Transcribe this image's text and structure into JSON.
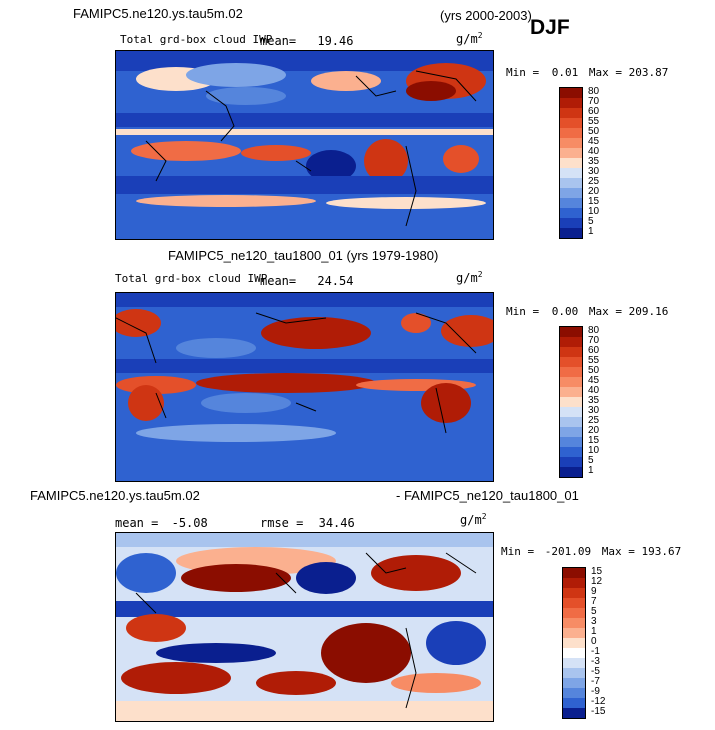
{
  "season": "DJF",
  "units_base": "g/m",
  "units_exp": "2",
  "panels": [
    {
      "title_left": "FAMIPC5.ne120.ys.tau5m.02",
      "title_right": "(yrs 2000-2003)",
      "variable": "Total grd-box cloud IWP",
      "mean_label": "mean=",
      "mean_value": "19.46",
      "min_label": "Min =",
      "min_value": "0.01",
      "max_label": "Max =",
      "max_value": "203.87",
      "colorbar_levels": [
        "80",
        "70",
        "60",
        "55",
        "50",
        "45",
        "40",
        "35",
        "30",
        "25",
        "20",
        "15",
        "10",
        "5",
        "1"
      ]
    },
    {
      "title_center": "FAMIPC5_ne120_tau1800_01 (yrs 1979-1980)",
      "variable": "Total grd-box cloud IWP",
      "mean_label": "mean=",
      "mean_value": "24.54",
      "min_label": "Min =",
      "min_value": "0.00",
      "max_label": "Max =",
      "max_value": "209.16",
      "colorbar_levels": [
        "80",
        "70",
        "60",
        "55",
        "50",
        "45",
        "40",
        "35",
        "30",
        "25",
        "20",
        "15",
        "10",
        "5",
        "1"
      ]
    },
    {
      "title_left": "FAMIPC5.ne120.ys.tau5m.02",
      "title_right": "- FAMIPC5_ne120_tau1800_01",
      "mean_label": "mean =",
      "mean_value": "-5.08",
      "rmse_label": "rmse =",
      "rmse_value": "34.46",
      "min_label": "Min =",
      "min_value": "-201.09",
      "max_label": "Max =",
      "max_value": "193.67",
      "colorbar_levels": [
        "15",
        "12",
        "9",
        "7",
        "5",
        "3",
        "1",
        "0",
        "-1",
        "-3",
        "-5",
        "-7",
        "-9",
        "-12",
        "-15"
      ]
    }
  ],
  "colors": {
    "abs_scale": [
      "#8b0d00",
      "#b01c06",
      "#cf3513",
      "#e4502a",
      "#f06c45",
      "#f78c65",
      "#fbb08f",
      "#fde0cb",
      "#d5e2f6",
      "#a9c4ee",
      "#7ea5e6",
      "#5585dc",
      "#2f62d0",
      "#1a3fb8",
      "#0a1f8f"
    ],
    "diff_scale": [
      "#8b0d00",
      "#b01c06",
      "#cf3513",
      "#e4502a",
      "#f06c45",
      "#f78c65",
      "#fbb08f",
      "#fde0cb",
      "#ffffff",
      "#d5e2f6",
      "#a9c4ee",
      "#7ea5e6",
      "#5585dc",
      "#2f62d0",
      "#0a1f8f"
    ]
  }
}
